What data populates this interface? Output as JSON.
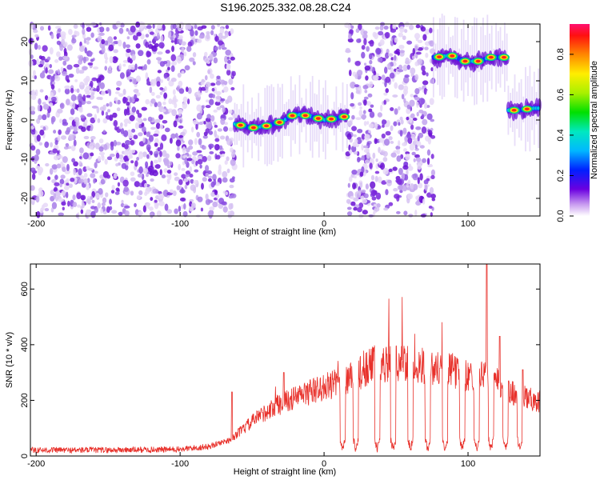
{
  "title": "S196.2025.332.08.28.C24",
  "chart_data": [
    {
      "type": "heatmap",
      "name": "spectrogram",
      "xlabel": "Height of straight line (km)",
      "ylabel": "Frequency (Hz)",
      "xlim": [
        -204,
        150
      ],
      "ylim": [
        -24.5,
        24.5
      ],
      "xticks": [
        -200,
        -100,
        0,
        100
      ],
      "yticks": [
        -20,
        -10,
        0,
        10,
        20
      ],
      "colorbar": {
        "label": "Normalized spectral amplitude",
        "range": [
          0,
          0.95
        ],
        "ticks": [
          0.0,
          0.2,
          0.4,
          0.6,
          0.8
        ]
      },
      "segments": [
        {
          "x_start": -204,
          "x_end": -62,
          "kind": "noise"
        },
        {
          "x_start": -62,
          "x_end": 16,
          "kind": "signal",
          "freq_track": [
            [
              -62,
              -1
            ],
            [
              -50,
              -2
            ],
            [
              -40,
              -1.5
            ],
            [
              -30,
              -0.5
            ],
            [
              -20,
              1.5
            ],
            [
              -10,
              1
            ],
            [
              0,
              0
            ],
            [
              10,
              0.5
            ],
            [
              16,
              1
            ]
          ]
        },
        {
          "x_start": 16,
          "x_end": 76,
          "kind": "noise"
        },
        {
          "x_start": 76,
          "x_end": 128,
          "kind": "signal",
          "freq_track": [
            [
              78,
              16
            ],
            [
              88,
              16.5
            ],
            [
              98,
              15
            ],
            [
              108,
              15
            ],
            [
              115,
              16
            ],
            [
              122,
              16
            ],
            [
              127,
              16
            ]
          ]
        },
        {
          "x_start": 128,
          "x_end": 150,
          "kind": "signal",
          "freq_track": [
            [
              128,
              2.5
            ],
            [
              135,
              2.5
            ],
            [
              145,
              3
            ],
            [
              150,
              3
            ]
          ]
        }
      ]
    },
    {
      "type": "line",
      "name": "snr",
      "xlabel": "Height of straight line (km)",
      "ylabel": "SNR (10 * v/v)",
      "xlim": [
        -204,
        150
      ],
      "ylim": [
        0,
        690
      ],
      "xticks": [
        -200,
        -100,
        0,
        100
      ],
      "yticks": [
        0,
        200,
        400,
        600
      ],
      "envelope": [
        [
          -204,
          25
        ],
        [
          -150,
          25
        ],
        [
          -100,
          28
        ],
        [
          -80,
          40
        ],
        [
          -65,
          70
        ],
        [
          -55,
          120
        ],
        [
          -45,
          170
        ],
        [
          -30,
          220
        ],
        [
          -15,
          260
        ],
        [
          0,
          290
        ],
        [
          15,
          320
        ],
        [
          25,
          350
        ],
        [
          35,
          390
        ],
        [
          50,
          390
        ],
        [
          70,
          380
        ],
        [
          90,
          360
        ],
        [
          105,
          330
        ],
        [
          115,
          340
        ],
        [
          125,
          280
        ],
        [
          135,
          260
        ],
        [
          150,
          230
        ]
      ],
      "dropouts": [
        13,
        22,
        37,
        48,
        60,
        72,
        84,
        96,
        106,
        116,
        126,
        136
      ],
      "spikes": [
        [
          -64,
          230
        ],
        [
          -28,
          300
        ],
        [
          113,
          690
        ],
        [
          122,
          430
        ],
        [
          138,
          310
        ]
      ]
    }
  ]
}
